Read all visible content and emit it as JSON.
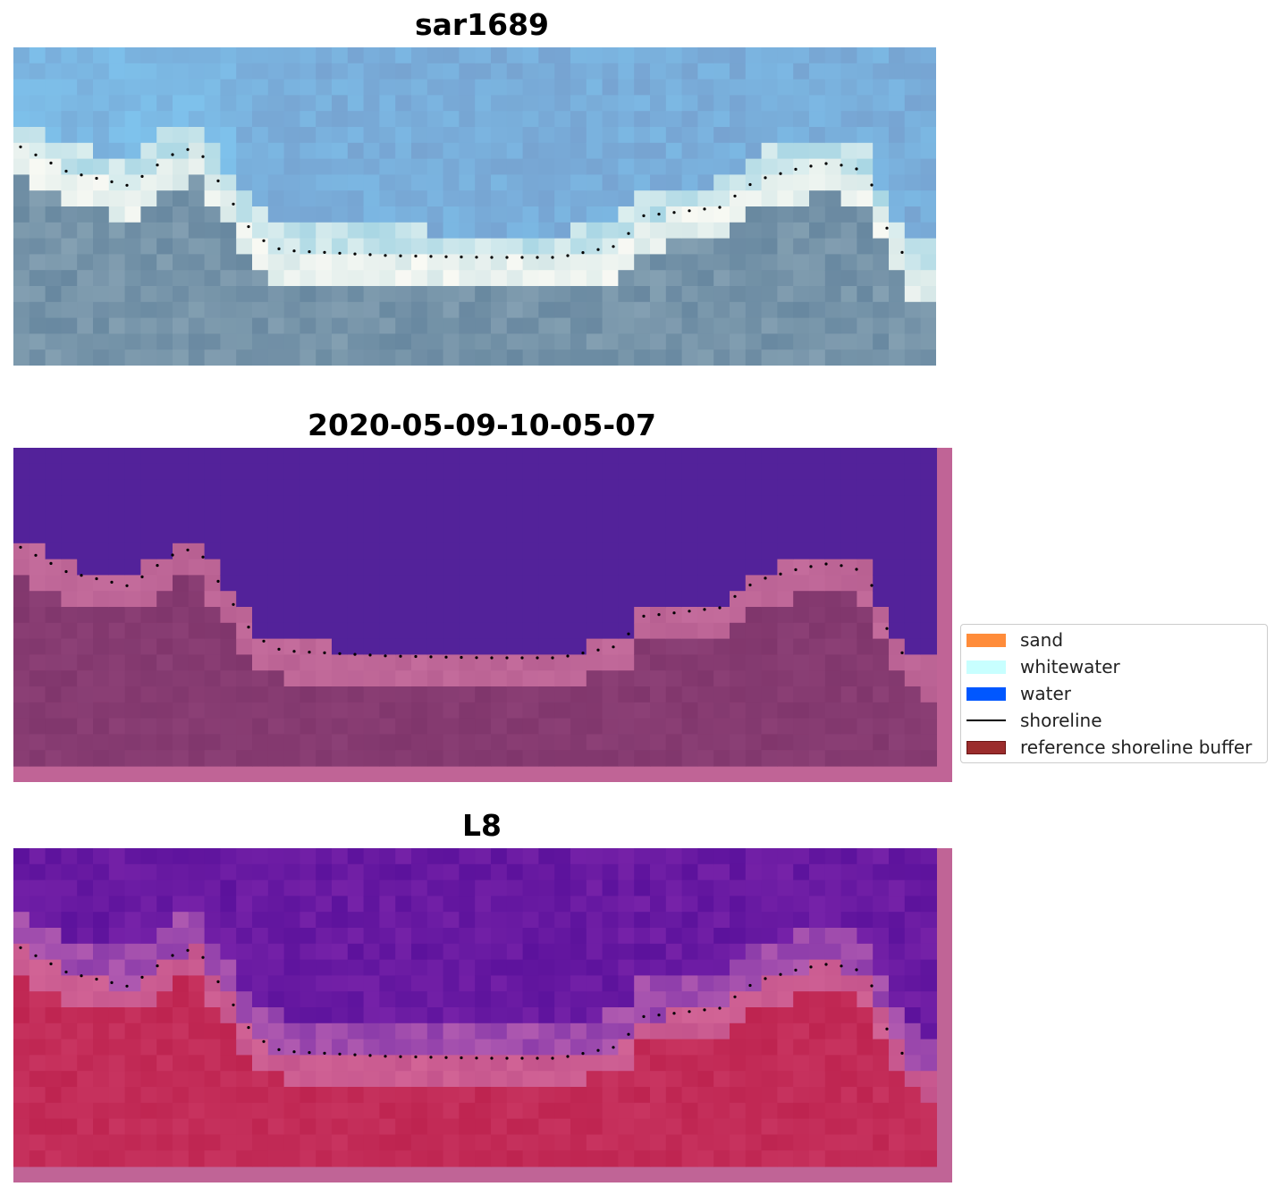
{
  "panels": [
    {
      "title": "sar1689",
      "kind": "rgb"
    },
    {
      "title": "2020-05-09-10-05-07",
      "kind": "classified"
    },
    {
      "title": "L8",
      "kind": "mndwi"
    }
  ],
  "legend": {
    "items": [
      {
        "label": "sand",
        "type": "patch",
        "color": "#ff8c3a"
      },
      {
        "label": "whitewater",
        "type": "patch",
        "color": "#c8ffff"
      },
      {
        "label": "water",
        "type": "patch",
        "color": "#0057ff"
      },
      {
        "label": "shoreline",
        "type": "line",
        "color": "#000000"
      },
      {
        "label": "reference shoreline buffer",
        "type": "patch",
        "color": "#9b2c2c"
      }
    ]
  },
  "colors": {
    "sky_light": "#7ec8f0",
    "sea_grey": "#6f8ea6",
    "class_water": "#53229a",
    "buffer_pink": "#c06496",
    "land_mauve": "#843a72",
    "mndwi_purple": "#6a16a0",
    "mndwi_red": "#c3264e"
  }
}
